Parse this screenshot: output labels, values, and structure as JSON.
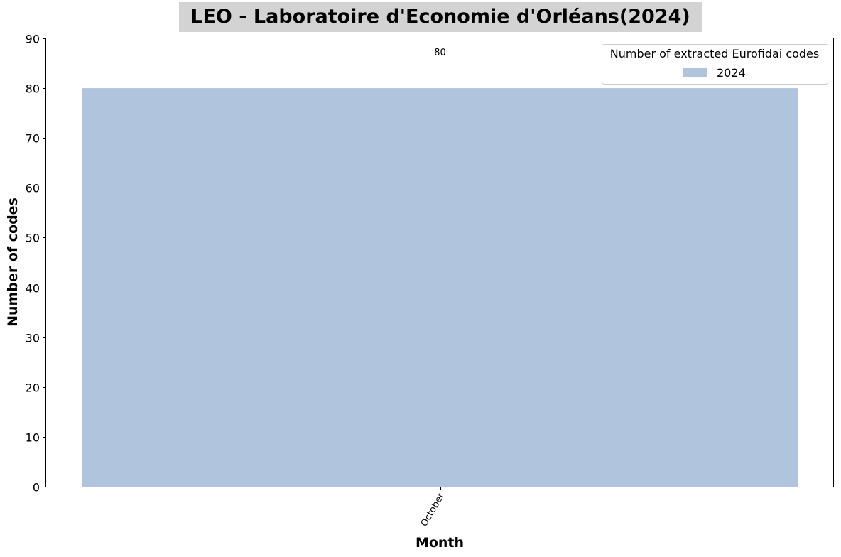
{
  "chart_data": {
    "type": "bar",
    "title": "LEO - Laboratoire d'Economie d'Orléans(2024)",
    "xlabel": "Month",
    "ylabel": "Number of codes",
    "categories": [
      "October"
    ],
    "series": [
      {
        "name": "2024",
        "values": [
          80
        ],
        "color": "#b0c4de"
      }
    ],
    "data_labels": [
      "80"
    ],
    "ylim": [
      0,
      90
    ],
    "yticks": [
      0,
      10,
      20,
      30,
      40,
      50,
      60,
      70,
      80,
      90
    ],
    "legend": {
      "title": "Number of extracted Eurofidai codes",
      "placement": "top-right"
    },
    "title_background": "#d3d3d3",
    "grid": false
  }
}
